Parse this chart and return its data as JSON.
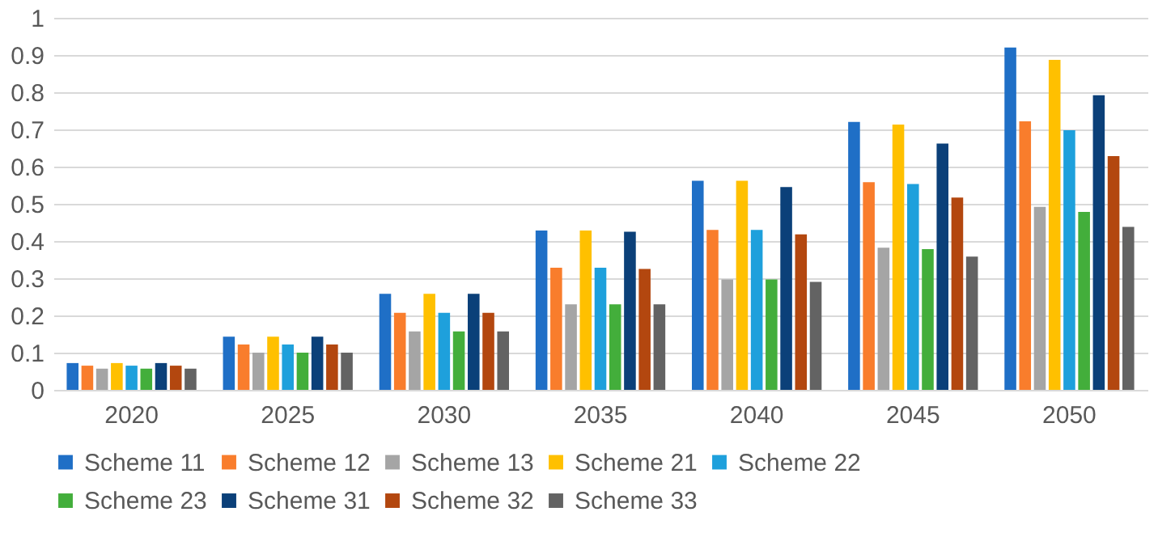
{
  "chart_data": {
    "type": "bar",
    "categories": [
      "2020",
      "2025",
      "2030",
      "2035",
      "2040",
      "2045",
      "2050"
    ],
    "ylim": [
      0,
      1
    ],
    "yticks": [
      0,
      0.1,
      0.2,
      0.3,
      0.4,
      0.5,
      0.6,
      0.7,
      0.8,
      0.9,
      1
    ],
    "grid": "y",
    "legend": "bottom",
    "series": [
      {
        "name": "Scheme 11",
        "color": "#1f6fc6",
        "values": [
          0.072,
          0.143,
          0.258,
          0.428,
          0.562,
          0.72,
          0.92
        ]
      },
      {
        "name": "Scheme 12",
        "color": "#f97d2c",
        "values": [
          0.065,
          0.122,
          0.207,
          0.328,
          0.43,
          0.558,
          0.722
        ]
      },
      {
        "name": "Scheme 13",
        "color": "#a5a5a5",
        "values": [
          0.057,
          0.1,
          0.157,
          0.23,
          0.297,
          0.382,
          0.492
        ]
      },
      {
        "name": "Scheme 21",
        "color": "#ffc000",
        "values": [
          0.072,
          0.143,
          0.258,
          0.428,
          0.562,
          0.713,
          0.887
        ]
      },
      {
        "name": "Scheme 22",
        "color": "#1ea0dc",
        "values": [
          0.065,
          0.122,
          0.207,
          0.328,
          0.43,
          0.553,
          0.698
        ]
      },
      {
        "name": "Scheme 23",
        "color": "#43ae3b",
        "values": [
          0.057,
          0.1,
          0.157,
          0.23,
          0.297,
          0.378,
          0.478
        ]
      },
      {
        "name": "Scheme 31",
        "color": "#0b4079",
        "values": [
          0.072,
          0.143,
          0.258,
          0.425,
          0.545,
          0.662,
          0.792
        ]
      },
      {
        "name": "Scheme 32",
        "color": "#b3470f",
        "values": [
          0.065,
          0.122,
          0.207,
          0.325,
          0.418,
          0.517,
          0.628
        ]
      },
      {
        "name": "Scheme 33",
        "color": "#636363",
        "values": [
          0.057,
          0.1,
          0.157,
          0.23,
          0.29,
          0.358,
          0.438
        ]
      }
    ]
  }
}
